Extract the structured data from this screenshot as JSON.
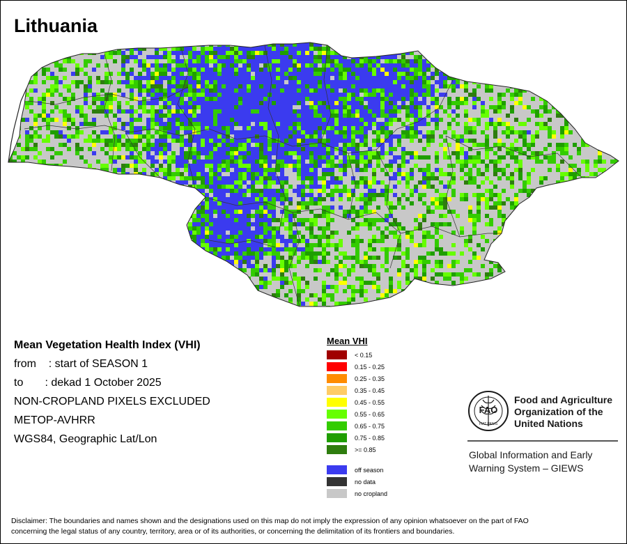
{
  "map": {
    "title": "Lithuania",
    "colors": {
      "off_season": "#3b3bef",
      "no_cropland": "#c8c8c8",
      "boundary": "#222222"
    }
  },
  "info": {
    "heading": "Mean Vegetation Health Index (VHI)",
    "from_line": "from    : start of SEASON 1",
    "to_line": "to       : dekad 1 October 2025",
    "pixels_line": "NON-CROPLAND PIXELS EXCLUDED",
    "sensor_line": "METOP-AVHRR",
    "projection_line": "WGS84, Geographic Lat/Lon"
  },
  "legend": {
    "title": "Mean VHI",
    "classes": [
      {
        "label": "< 0.15",
        "color": "#a00000"
      },
      {
        "label": "0.15 - 0.25",
        "color": "#ff0000"
      },
      {
        "label": "0.25 - 0.35",
        "color": "#ff8c00"
      },
      {
        "label": "0.35 - 0.45",
        "color": "#ffcc66"
      },
      {
        "label": "0.45 - 0.55",
        "color": "#ffff00"
      },
      {
        "label": "0.55 - 0.65",
        "color": "#66ff00"
      },
      {
        "label": "0.65 - 0.75",
        "color": "#33cc00"
      },
      {
        "label": "0.75 - 0.85",
        "color": "#1f9e00"
      },
      {
        "label": ">= 0.85",
        "color": "#2e7d0e"
      }
    ],
    "special": [
      {
        "label": "off season",
        "color": "#3b3bef"
      },
      {
        "label": "no data",
        "color": "#333333"
      },
      {
        "label": "no cropland",
        "color": "#c8c8c8"
      }
    ]
  },
  "logo": {
    "letters": "FAO",
    "motto": "FIAT PANIS",
    "name_line1": "Food and Agriculture",
    "name_line2": "Organization of the",
    "name_line3": "United Nations",
    "giews_line1": "Global Information and Early",
    "giews_line2": "Warning System – GIEWS"
  },
  "disclaimer": {
    "line1": "Disclaimer: The boundaries and names shown and the designations used on this map do not imply the expression of any opinion whatsoever on the part of FAO",
    "line2": "concerning the legal status of any country, territory, area or of its authorities, or concerning the delimitation of its frontiers and boundaries."
  }
}
